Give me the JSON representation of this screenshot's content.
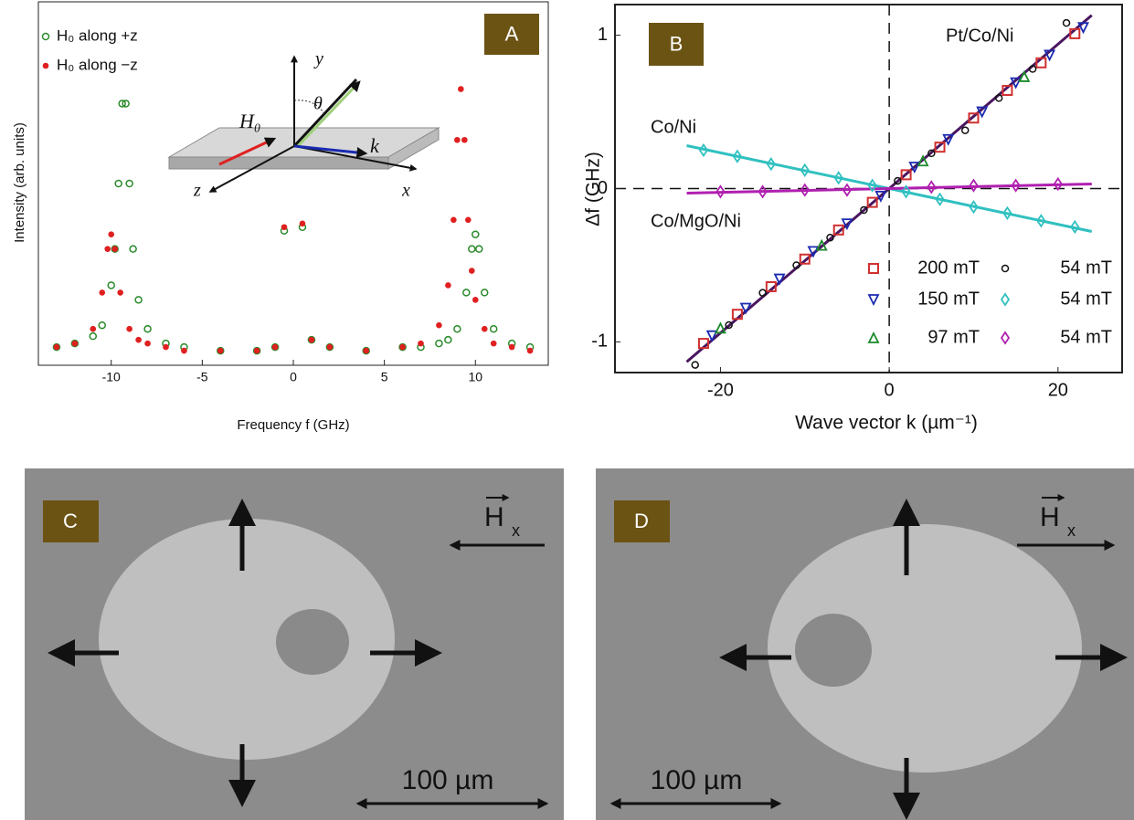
{
  "chart_data": [
    {
      "type": "scatter",
      "label": "A",
      "xlabel": "Frequency f (GHz)",
      "ylabel": "Intensity (arb. units)",
      "xlim": [
        -14,
        14
      ],
      "xticks": [
        -10,
        -5,
        0,
        5,
        10
      ],
      "ylim": [
        0,
        1
      ],
      "annotations": [
        "y",
        "θ",
        "H₀",
        "k",
        "z",
        "x"
      ],
      "series": [
        {
          "name": "H₀ along +z",
          "color": "#2a8a2a",
          "marker": "open-circle",
          "x": [
            -13,
            -12,
            -11,
            -10.5,
            -10,
            -9.8,
            -9.6,
            -9.4,
            -9.2,
            -9.0,
            -8.8,
            -8.5,
            -8,
            -7,
            -6,
            -4,
            -2,
            -1,
            -0.5,
            0.5,
            1,
            2,
            4,
            6,
            7,
            8,
            8.5,
            9,
            9.5,
            9.8,
            10,
            10.2,
            10.5,
            11,
            12,
            13
          ],
          "values": [
            0.05,
            0.06,
            0.08,
            0.11,
            0.22,
            0.32,
            0.5,
            0.72,
            0.72,
            0.5,
            0.32,
            0.18,
            0.1,
            0.06,
            0.05,
            0.04,
            0.04,
            0.05,
            0.37,
            0.38,
            0.07,
            0.05,
            0.04,
            0.05,
            0.05,
            0.06,
            0.07,
            0.1,
            0.2,
            0.32,
            0.36,
            0.32,
            0.2,
            0.1,
            0.06,
            0.05
          ]
        },
        {
          "name": "H₀ along −z",
          "color": "#e02020",
          "marker": "filled-circle",
          "x": [
            -13,
            -12,
            -11,
            -10.5,
            -10.2,
            -10,
            -9.8,
            -9.5,
            -9,
            -8.5,
            -8,
            -7,
            -6,
            -4,
            -2,
            -1,
            -0.5,
            0.5,
            1,
            2,
            4,
            6,
            7,
            8,
            8.5,
            8.8,
            9.0,
            9.2,
            9.4,
            9.6,
            9.8,
            10,
            10.5,
            11,
            12,
            13
          ],
          "values": [
            0.05,
            0.06,
            0.1,
            0.2,
            0.32,
            0.36,
            0.32,
            0.2,
            0.1,
            0.07,
            0.06,
            0.05,
            0.04,
            0.04,
            0.04,
            0.05,
            0.38,
            0.39,
            0.07,
            0.05,
            0.04,
            0.05,
            0.06,
            0.11,
            0.22,
            0.4,
            0.62,
            0.76,
            0.62,
            0.4,
            0.26,
            0.18,
            0.1,
            0.06,
            0.05,
            0.04
          ]
        }
      ]
    },
    {
      "type": "scatter",
      "label": "B",
      "xlabel": "Wave vector k (µm⁻¹)",
      "ylabel": "Δf (GHz)",
      "xlim": [
        -32.5,
        27.6
      ],
      "xticks": [
        -20,
        0,
        20
      ],
      "ylim": [
        -1.2,
        1.2
      ],
      "yticks": [
        -1,
        0,
        1
      ],
      "annotations": [
        "Pt/Co/Ni",
        "Co/Ni",
        "Co/MgO/Ni"
      ],
      "series": [
        {
          "name": "200 mT",
          "color": "#d03030",
          "marker": "square",
          "x": [
            -22,
            -18,
            -14,
            -10,
            -6,
            -2,
            2,
            6,
            10,
            14,
            18,
            22
          ],
          "values": [
            -1.01,
            -0.82,
            -0.64,
            -0.46,
            -0.27,
            -0.09,
            0.09,
            0.27,
            0.46,
            0.64,
            0.82,
            1.01
          ]
        },
        {
          "name": "150 mT",
          "color": "#1a2ab0",
          "marker": "tri-down",
          "x": [
            -21,
            -17,
            -13,
            -9,
            -5,
            -1,
            3,
            7,
            11,
            15,
            19,
            23
          ],
          "values": [
            -0.96,
            -0.78,
            -0.59,
            -0.41,
            -0.23,
            -0.05,
            0.14,
            0.32,
            0.5,
            0.69,
            0.87,
            1.05
          ]
        },
        {
          "name": "97 mT",
          "color": "#1a8a2a",
          "marker": "tri-up",
          "x": [
            -20,
            -8,
            4,
            16
          ],
          "values": [
            -0.91,
            -0.37,
            0.18,
            0.73
          ]
        },
        {
          "name": "54 mT",
          "color": "#111111",
          "marker": "open-circle",
          "x": [
            -23,
            -19,
            -15,
            -11,
            -7,
            -3,
            1,
            5,
            9,
            13,
            17,
            21
          ],
          "values": [
            -1.15,
            -0.89,
            -0.68,
            -0.5,
            -0.32,
            -0.14,
            0.05,
            0.23,
            0.38,
            0.59,
            0.78,
            1.08
          ]
        },
        {
          "name": "54 mT",
          "color": "#30c0c0",
          "marker": "diamond",
          "x": [
            -22,
            -18,
            -14,
            -10,
            -6,
            -2,
            2,
            6,
            10,
            14,
            18,
            22
          ],
          "values": [
            0.25,
            0.21,
            0.16,
            0.12,
            0.07,
            0.02,
            -0.02,
            -0.07,
            -0.12,
            -0.16,
            -0.21,
            -0.25
          ]
        },
        {
          "name": "54 mT",
          "color": "#b020b0",
          "marker": "diamond",
          "x": [
            -20,
            -15,
            -10,
            -5,
            5,
            10,
            15,
            20
          ],
          "values": [
            -0.02,
            -0.02,
            -0.01,
            -0.01,
            0.01,
            0.02,
            0.02,
            0.03
          ]
        }
      ],
      "fits": [
        {
          "color": "#4a1660",
          "x": [
            -24,
            24
          ],
          "values": [
            -1.13,
            1.13
          ]
        },
        {
          "color": "#30c0c0",
          "x": [
            -24,
            24
          ],
          "values": [
            0.28,
            -0.28
          ]
        },
        {
          "color": "#b020b0",
          "x": [
            -24,
            24
          ],
          "values": [
            -0.03,
            0.03
          ]
        }
      ]
    }
  ],
  "panels": [
    {
      "label": "C",
      "field": "H",
      "field_sub": "x",
      "scale_bar": "100 µm"
    },
    {
      "label": "D",
      "field": "H",
      "field_sub": "x",
      "scale_bar": "100 µm"
    }
  ]
}
